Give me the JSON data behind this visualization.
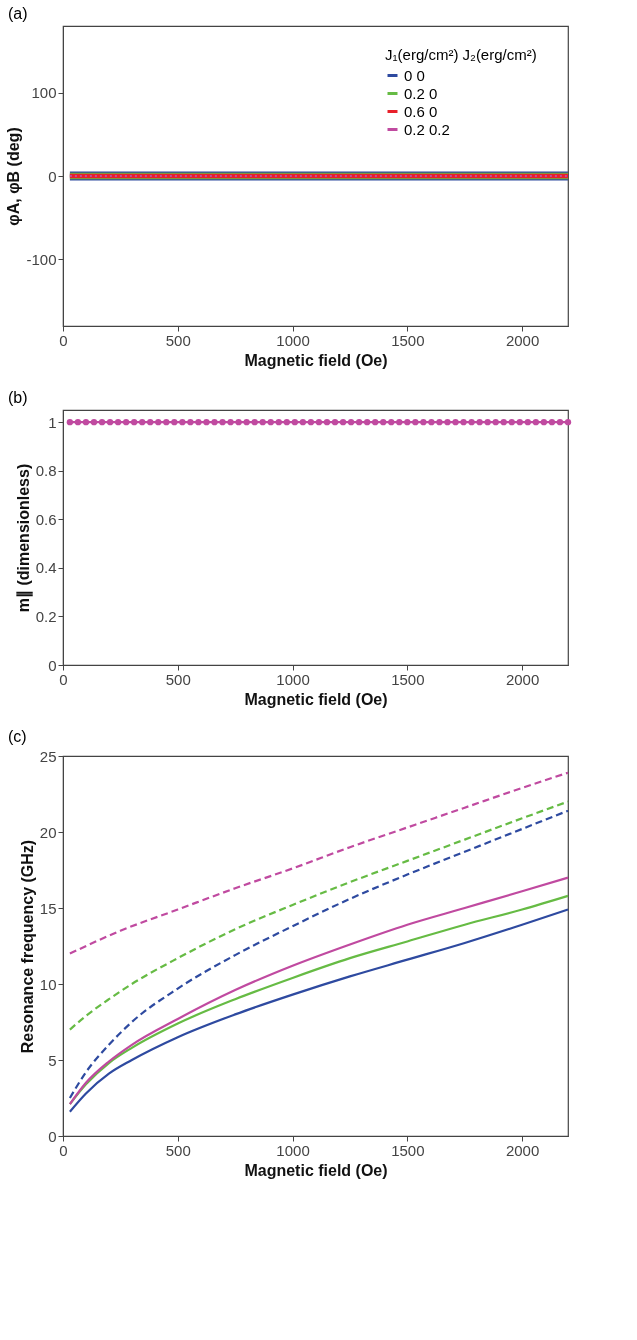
{
  "chart_data": [
    {
      "type": "line",
      "title": "(a)",
      "xlabel": "Magnetic field (Oe)",
      "ylabel": "φA, φB (deg)",
      "xlim": [
        0,
        2200
      ],
      "xticks": [
        0,
        500,
        1000,
        1500,
        2000
      ],
      "ylim": [
        -180,
        180
      ],
      "yticks": [
        -100,
        0,
        100
      ],
      "grid": false,
      "legend": "top right",
      "legend_title": "J₁(erg/cm²)   J₂(erg/cm²)",
      "series": [
        {
          "name": "0          0",
          "color": "#2e4aa0",
          "line_style": "solid",
          "x": [
            30,
            2200
          ],
          "values": [
            0,
            0
          ]
        },
        {
          "name": "0.2        0",
          "color": "#66bb44",
          "line_style": "solid",
          "x": [
            30,
            2200
          ],
          "values": [
            0,
            0
          ]
        },
        {
          "name": "0.6        0",
          "color": "#e8202a",
          "line_style": "solid",
          "x": [
            30,
            2200
          ],
          "values": [
            0,
            0
          ]
        },
        {
          "name": "0.2       0.2",
          "color": "#c04aa0",
          "line_style": "dotted",
          "x": [
            30,
            2200
          ],
          "values": [
            0,
            0
          ]
        }
      ]
    },
    {
      "type": "line",
      "title": "(b)",
      "xlabel": "Magnetic field (Oe)",
      "ylabel": "m∥ (dimensionless)",
      "xlim": [
        0,
        2200
      ],
      "xticks": [
        0,
        500,
        1000,
        1500,
        2000
      ],
      "ylim": [
        0,
        1.05
      ],
      "yticks": [
        0,
        0.2,
        0.4,
        0.6,
        0.8,
        1
      ],
      "grid": false,
      "series": [
        {
          "color": "#c04aa0",
          "line_style": "solid",
          "marker": "circle",
          "x": [
            30,
            65,
            100,
            135,
            170,
            205,
            240,
            275,
            310,
            345,
            380,
            415,
            450,
            485,
            520,
            555,
            590,
            625,
            660,
            695,
            730,
            765,
            800,
            835,
            870,
            905,
            940,
            975,
            1010,
            1045,
            1080,
            1115,
            1150,
            1185,
            1220,
            1255,
            1290,
            1325,
            1360,
            1395,
            1430,
            1465,
            1500,
            1535,
            1570,
            1605,
            1640,
            1675,
            1710,
            1745,
            1780,
            1815,
            1850,
            1885,
            1920,
            1955,
            1990,
            2025,
            2060,
            2095,
            2130,
            2165,
            2200
          ],
          "values": [
            1,
            1,
            1,
            1,
            1,
            1,
            1,
            1,
            1,
            1,
            1,
            1,
            1,
            1,
            1,
            1,
            1,
            1,
            1,
            1,
            1,
            1,
            1,
            1,
            1,
            1,
            1,
            1,
            1,
            1,
            1,
            1,
            1,
            1,
            1,
            1,
            1,
            1,
            1,
            1,
            1,
            1,
            1,
            1,
            1,
            1,
            1,
            1,
            1,
            1,
            1,
            1,
            1,
            1,
            1,
            1,
            1,
            1,
            1,
            1,
            1,
            1,
            1
          ]
        }
      ]
    },
    {
      "type": "line",
      "title": "(c)",
      "xlabel": "Magnetic field (Oe)",
      "ylabel": "Resonance frequency (GHz)",
      "xlim": [
        0,
        2200
      ],
      "xticks": [
        0,
        500,
        1000,
        1500,
        2000
      ],
      "ylim": [
        0,
        25
      ],
      "yticks": [
        0,
        5,
        10,
        15,
        20,
        25
      ],
      "grid": false,
      "series": [
        {
          "color": "#2e4aa0",
          "line_style": "solid",
          "x": [
            30,
            100,
            200,
            300,
            500,
            750,
            1000,
            1250,
            1500,
            1750,
            2000,
            2200
          ],
          "values": [
            1.6,
            2.8,
            4.1,
            5.0,
            6.5,
            8.0,
            9.3,
            10.5,
            11.6,
            12.7,
            13.9,
            14.9
          ]
        },
        {
          "color": "#66bb44",
          "line_style": "solid",
          "x": [
            30,
            100,
            200,
            300,
            500,
            750,
            1000,
            1250,
            1500,
            1750,
            2000,
            2200
          ],
          "values": [
            2.1,
            3.4,
            4.8,
            5.8,
            7.4,
            9.0,
            10.4,
            11.7,
            12.8,
            13.9,
            14.9,
            15.8
          ]
        },
        {
          "color": "#c04aa0",
          "line_style": "solid",
          "x": [
            30,
            100,
            200,
            300,
            500,
            750,
            1000,
            1250,
            1500,
            1750,
            2000,
            2200
          ],
          "values": [
            2.1,
            3.5,
            4.9,
            6.0,
            7.7,
            9.6,
            11.2,
            12.6,
            13.9,
            15.0,
            16.1,
            17.0
          ]
        },
        {
          "color": "#2e4aa0",
          "line_style": "dashed",
          "x": [
            30,
            100,
            200,
            300,
            500,
            750,
            1000,
            1250,
            1500,
            1750,
            2000,
            2200
          ],
          "values": [
            2.5,
            4.2,
            6.0,
            7.5,
            9.7,
            11.9,
            13.8,
            15.6,
            17.2,
            18.7,
            20.2,
            21.4
          ]
        },
        {
          "color": "#66bb44",
          "line_style": "dashed",
          "x": [
            30,
            100,
            200,
            300,
            500,
            750,
            1000,
            1250,
            1500,
            1750,
            2000,
            2200
          ],
          "values": [
            7.0,
            7.9,
            9.0,
            10.0,
            11.7,
            13.6,
            15.2,
            16.7,
            18.1,
            19.5,
            20.9,
            22.0
          ]
        },
        {
          "color": "#c04aa0",
          "line_style": "dashed",
          "x": [
            30,
            250,
            500,
            750,
            1000,
            1250,
            1500,
            1750,
            2000,
            2200
          ],
          "values": [
            12.0,
            13.5,
            14.9,
            16.3,
            17.6,
            19.0,
            20.3,
            21.6,
            22.9,
            23.9
          ]
        }
      ]
    }
  ]
}
